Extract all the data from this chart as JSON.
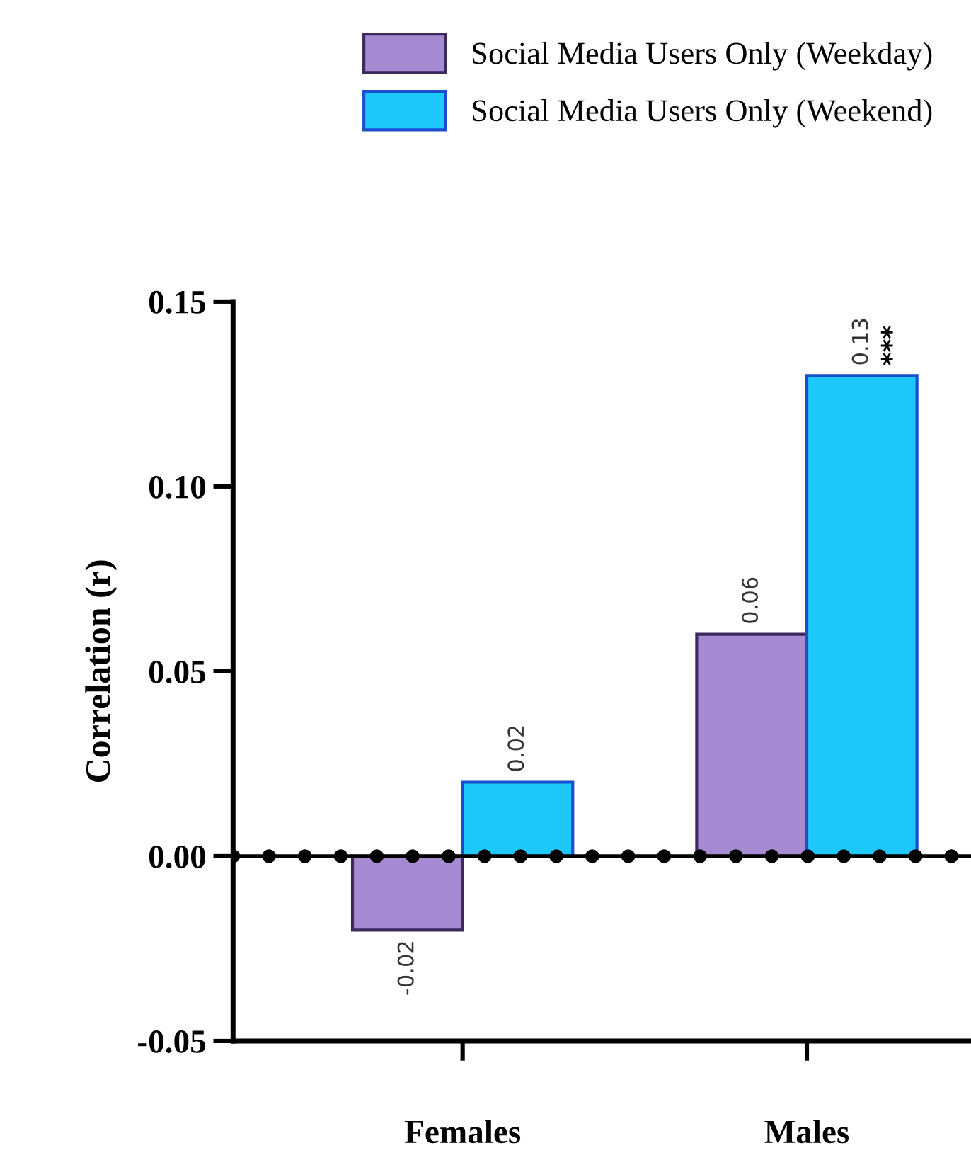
{
  "chart_data": {
    "type": "bar",
    "ylabel": "Correlation (r)",
    "categories": [
      "Females",
      "Males"
    ],
    "series": [
      {
        "name": "Social Media Users Only (Weekday)",
        "color": "#a68bd3",
        "values": [
          -0.02,
          0.06
        ]
      },
      {
        "name": "Social Media Users Only (Weekend)",
        "color": "#1ec8fb",
        "values": [
          0.02,
          0.13
        ]
      }
    ],
    "ylim": [
      -0.05,
      0.15
    ],
    "yticks": [
      {
        "value": -0.05,
        "label": "-0.05"
      },
      {
        "value": 0,
        "label": "0.00"
      },
      {
        "value": 0.05,
        "label": "0.05"
      },
      {
        "value": 0.1,
        "label": "0.10"
      },
      {
        "value": 0.15,
        "label": "0.15"
      }
    ],
    "ref_lines": [
      {
        "axis": "y",
        "value": 0,
        "line_style": "dotted",
        "color": "#000000"
      }
    ],
    "annotations": [
      {
        "text": "***",
        "x": "Males",
        "y": 0.13
      }
    ],
    "data_labels": true,
    "legend": "top right",
    "grid": false
  }
}
